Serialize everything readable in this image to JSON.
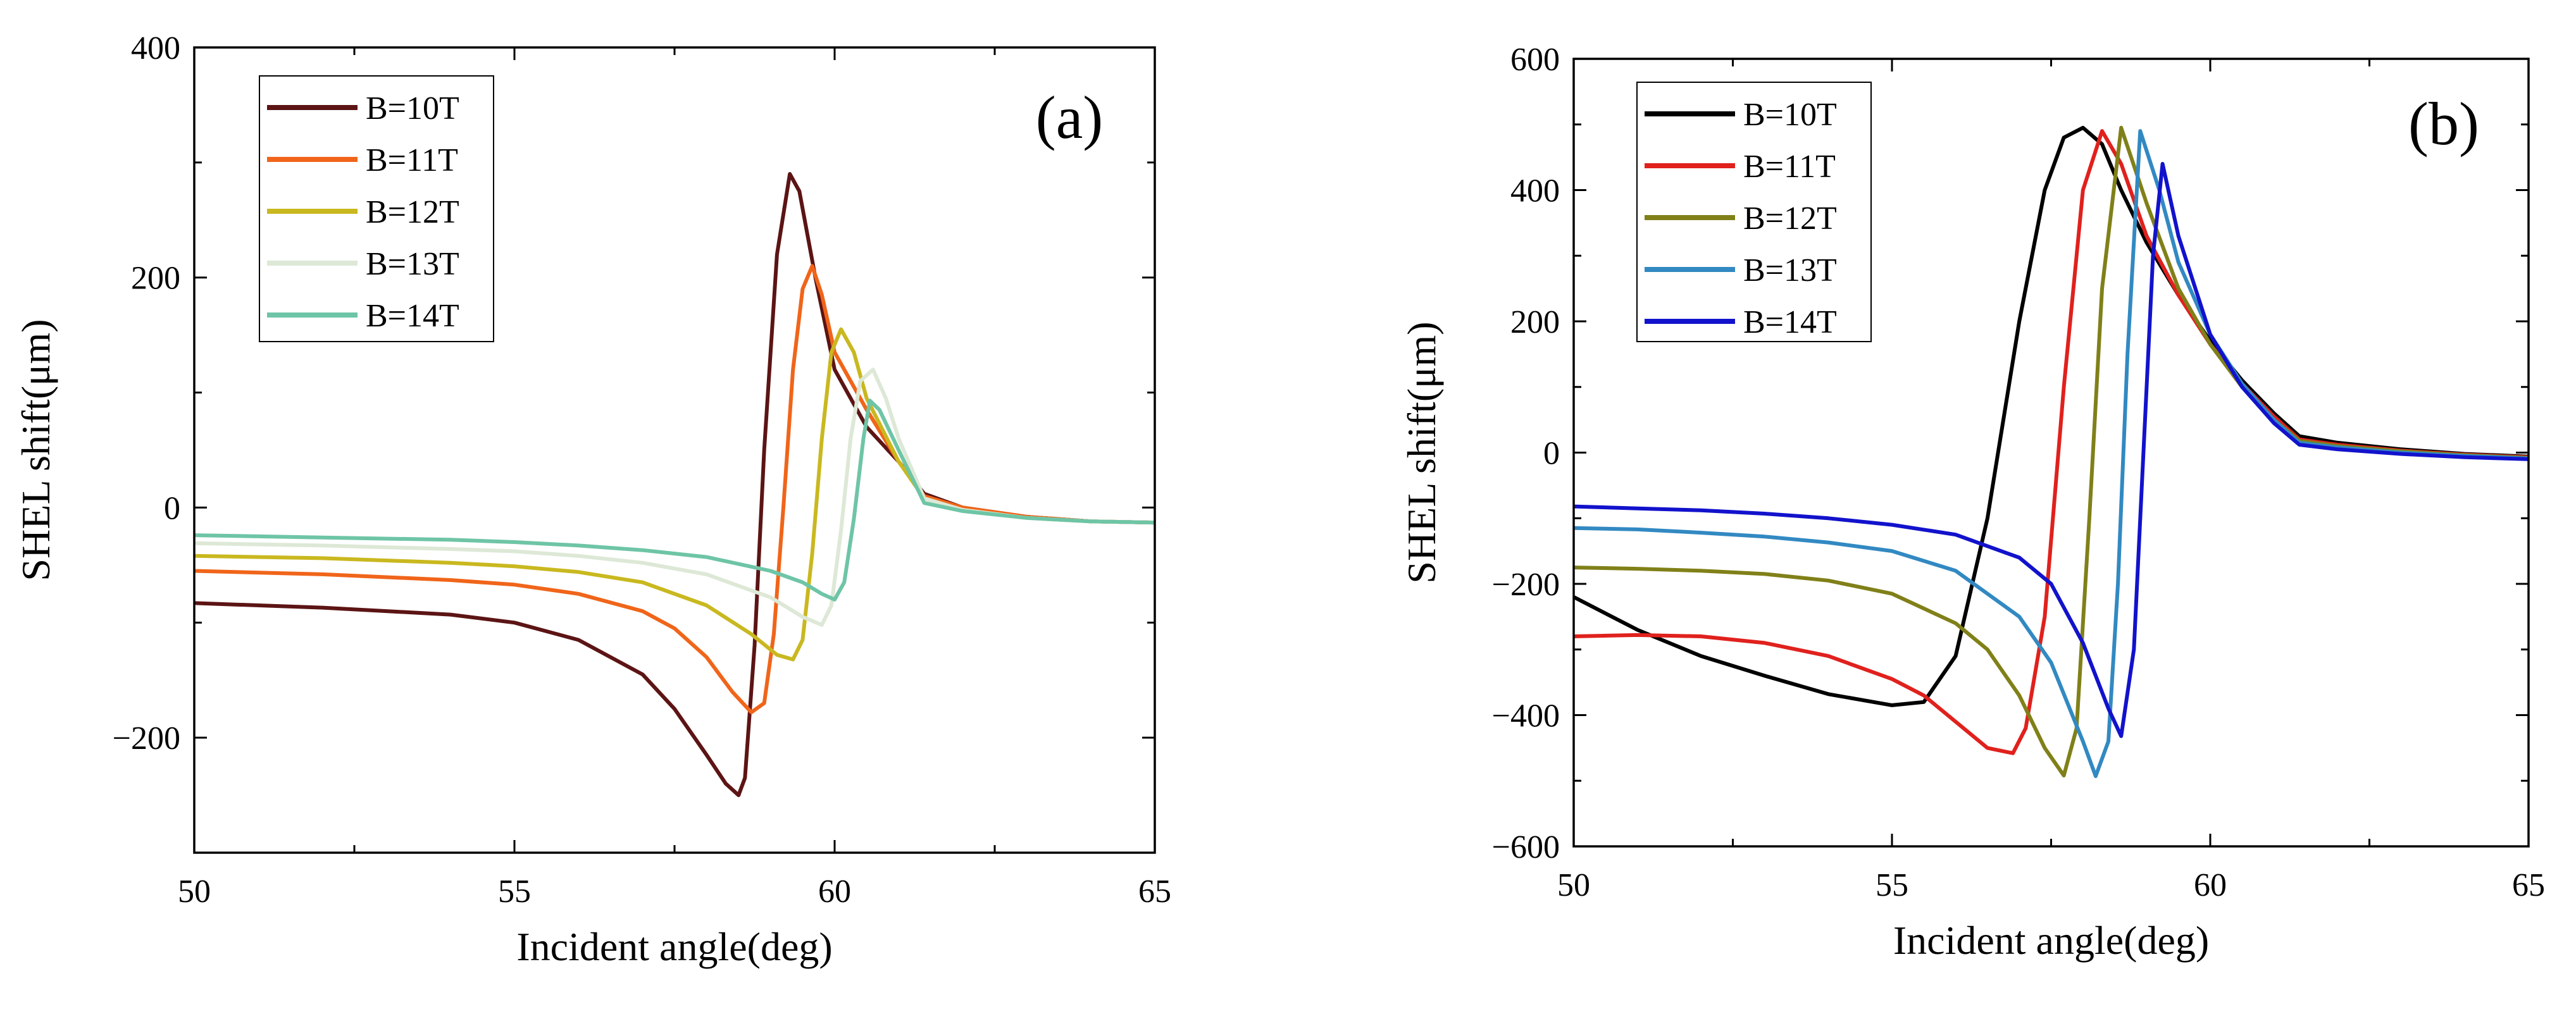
{
  "chart_data": [
    {
      "id": "a",
      "type": "line",
      "panel_label": "(a)",
      "xlabel": "Incident angle(deg)",
      "ylabel": "SHEL shift(μm)",
      "xlim": [
        50,
        65
      ],
      "ylim": [
        -300,
        400
      ],
      "xticks": [
        50,
        55,
        60,
        65
      ],
      "yticks": [
        -200,
        0,
        200,
        400
      ],
      "ytick_labels": [
        "−200",
        "0",
        "200",
        "400"
      ],
      "legend_position": "top-left",
      "grid": false,
      "series": [
        {
          "name": "B=10T",
          "color": "#5c1414",
          "x": [
            50,
            52,
            54,
            55,
            56,
            57,
            57.5,
            58,
            58.3,
            58.5,
            58.6,
            58.75,
            58.9,
            59.1,
            59.3,
            59.45,
            59.7,
            60,
            60.5,
            61,
            61.4,
            62,
            63,
            64,
            65
          ],
          "y": [
            -83,
            -87,
            -93,
            -100,
            -115,
            -145,
            -175,
            -215,
            -240,
            -250,
            -235,
            -120,
            50,
            220,
            290,
            275,
            200,
            120,
            70,
            40,
            12,
            0,
            -8,
            -12,
            -13
          ]
        },
        {
          "name": "B=11T",
          "color": "#f0651a",
          "x": [
            50,
            52,
            54,
            55,
            56,
            57,
            57.5,
            58,
            58.4,
            58.7,
            58.9,
            59.05,
            59.2,
            59.35,
            59.5,
            59.65,
            59.8,
            60,
            60.5,
            61,
            61.4,
            62,
            63,
            64,
            65
          ],
          "y": [
            -55,
            -58,
            -63,
            -67,
            -75,
            -90,
            -105,
            -130,
            -160,
            -178,
            -170,
            -110,
            0,
            120,
            190,
            210,
            185,
            135,
            85,
            40,
            10,
            0,
            -8,
            -12,
            -13
          ]
        },
        {
          "name": "B=12T",
          "color": "#c9b81f",
          "x": [
            50,
            52,
            54,
            55,
            56,
            57,
            58,
            58.7,
            59.1,
            59.35,
            59.5,
            59.65,
            59.8,
            59.95,
            60.1,
            60.3,
            60.5,
            61,
            61.4,
            62,
            63,
            64,
            65
          ],
          "y": [
            -42,
            -44,
            -48,
            -51,
            -56,
            -65,
            -85,
            -110,
            -128,
            -132,
            -115,
            -40,
            60,
            135,
            155,
            135,
            95,
            40,
            8,
            -2,
            -9,
            -12,
            -13
          ]
        },
        {
          "name": "B=13T",
          "color": "#dde8d6",
          "x": [
            50,
            52,
            54,
            55,
            56,
            57,
            58,
            59,
            59.5,
            59.8,
            59.95,
            60.1,
            60.25,
            60.4,
            60.6,
            60.8,
            61,
            61.4,
            62,
            63,
            64,
            65
          ],
          "y": [
            -31,
            -33,
            -36,
            -38,
            -42,
            -48,
            -58,
            -78,
            -95,
            -102,
            -85,
            -20,
            60,
            110,
            120,
            95,
            60,
            8,
            -2,
            -9,
            -12,
            -13
          ]
        },
        {
          "name": "B=14T",
          "color": "#6ec5a6",
          "x": [
            50,
            52,
            54,
            55,
            56,
            57,
            58,
            59,
            59.5,
            59.8,
            60,
            60.15,
            60.3,
            60.45,
            60.55,
            60.7,
            61,
            61.4,
            62,
            63,
            64,
            65
          ],
          "y": [
            -24,
            -26,
            -28,
            -30,
            -33,
            -37,
            -43,
            -55,
            -65,
            -75,
            -80,
            -65,
            -10,
            60,
            93,
            85,
            50,
            4,
            -3,
            -9,
            -12,
            -13
          ]
        }
      ]
    },
    {
      "id": "b",
      "type": "line",
      "panel_label": "(b)",
      "xlabel": "Incident angle(deg)",
      "ylabel": "SHEL shift(μm)",
      "xlim": [
        50,
        65
      ],
      "ylim": [
        -600,
        600
      ],
      "xticks": [
        50,
        55,
        60,
        65
      ],
      "yticks": [
        -600,
        -400,
        -200,
        0,
        200,
        400,
        600
      ],
      "ytick_labels": [
        "−600",
        "−400",
        "−200",
        "0",
        "200",
        "400",
        "600"
      ],
      "legend_position": "top-left",
      "grid": false,
      "series": [
        {
          "name": "B=10T",
          "color": "#000000",
          "x": [
            50,
            51,
            52,
            53,
            54,
            55,
            55.5,
            56,
            56.5,
            57,
            57.4,
            57.7,
            58,
            58.3,
            58.6,
            59,
            59.5,
            60,
            60.5,
            61,
            61.4,
            62,
            63,
            64,
            65
          ],
          "y": [
            -220,
            -270,
            -310,
            -340,
            -368,
            -385,
            -380,
            -310,
            -100,
            200,
            400,
            480,
            495,
            470,
            400,
            320,
            240,
            170,
            110,
            60,
            25,
            15,
            5,
            -2,
            -6
          ]
        },
        {
          "name": "B=11T",
          "color": "#e0211d",
          "x": [
            50,
            51,
            52,
            53,
            54,
            55,
            55.5,
            56,
            56.5,
            56.9,
            57.1,
            57.4,
            57.7,
            58,
            58.3,
            58.6,
            59,
            59.5,
            60,
            60.5,
            61,
            61.4,
            62,
            63,
            64,
            65
          ],
          "y": [
            -280,
            -278,
            -280,
            -290,
            -310,
            -345,
            -370,
            -410,
            -450,
            -458,
            -420,
            -250,
            100,
            400,
            490,
            440,
            330,
            240,
            165,
            105,
            55,
            20,
            12,
            3,
            -3,
            -7
          ]
        },
        {
          "name": "B=12T",
          "color": "#808019",
          "x": [
            50,
            51,
            52,
            53,
            54,
            55,
            56,
            56.5,
            57,
            57.4,
            57.7,
            57.9,
            58.1,
            58.3,
            58.6,
            59,
            59.5,
            60,
            60.5,
            61,
            61.4,
            62,
            63,
            64,
            65
          ],
          "y": [
            -175,
            -177,
            -180,
            -185,
            -195,
            -215,
            -260,
            -300,
            -370,
            -450,
            -492,
            -420,
            -100,
            250,
            495,
            380,
            250,
            165,
            100,
            50,
            18,
            10,
            2,
            -4,
            -8
          ]
        },
        {
          "name": "B=13T",
          "color": "#3289c2",
          "x": [
            50,
            51,
            52,
            53,
            54,
            55,
            56,
            57,
            57.5,
            58,
            58.2,
            58.4,
            58.55,
            58.7,
            58.9,
            59.2,
            59.5,
            60,
            60.5,
            61,
            61.4,
            62,
            63,
            64,
            65
          ],
          "y": [
            -115,
            -117,
            -122,
            -128,
            -137,
            -150,
            -180,
            -250,
            -320,
            -440,
            -493,
            -440,
            -200,
            150,
            490,
            400,
            290,
            180,
            105,
            50,
            15,
            8,
            0,
            -5,
            -9
          ]
        },
        {
          "name": "B=14T",
          "color": "#1212cc",
          "x": [
            50,
            51,
            52,
            53,
            54,
            55,
            56,
            57,
            57.5,
            58,
            58.4,
            58.6,
            58.8,
            58.95,
            59.1,
            59.25,
            59.5,
            60,
            60.5,
            61,
            61.4,
            62,
            63,
            64,
            65
          ],
          "y": [
            -82,
            -85,
            -88,
            -93,
            -100,
            -110,
            -125,
            -160,
            -200,
            -290,
            -390,
            -432,
            -300,
            0,
            300,
            440,
            330,
            180,
            100,
            45,
            12,
            5,
            -2,
            -7,
            -10
          ]
        }
      ]
    }
  ]
}
